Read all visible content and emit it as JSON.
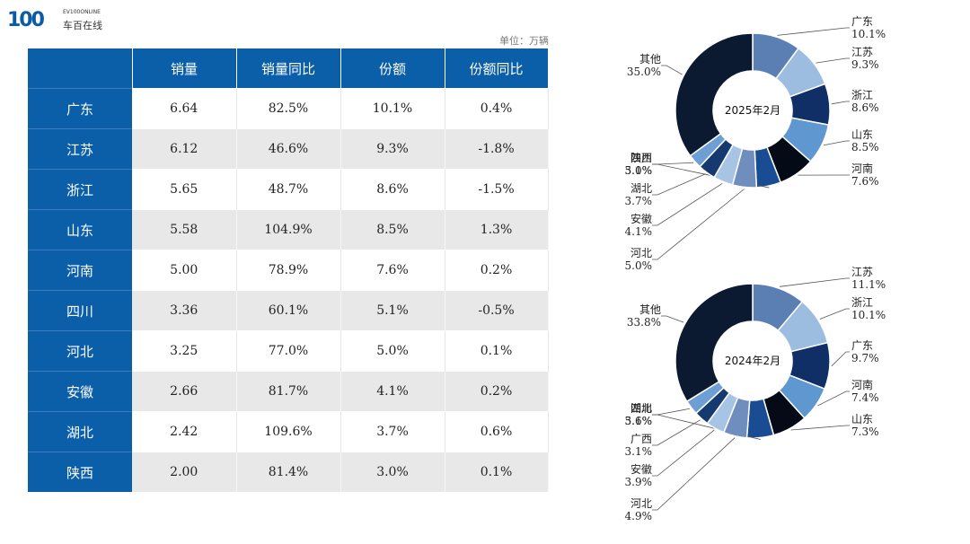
{
  "brand": {
    "logo_mark": "100",
    "logo_en": "EV100ONLINE",
    "logo_cn": "车百在线"
  },
  "unit_label": "单位：万辆",
  "table": {
    "headers": [
      "",
      "销量",
      "销量同比",
      "份额",
      "份额同比"
    ],
    "rows": [
      [
        "广东",
        "6.64",
        "82.5%",
        "10.1%",
        "0.4%"
      ],
      [
        "江苏",
        "6.12",
        "46.6%",
        "9.3%",
        "-1.8%"
      ],
      [
        "浙江",
        "5.65",
        "48.7%",
        "8.6%",
        "-1.5%"
      ],
      [
        "山东",
        "5.58",
        "104.9%",
        "8.5%",
        "1.3%"
      ],
      [
        "河南",
        "5.00",
        "78.9%",
        "7.6%",
        "0.2%"
      ],
      [
        "四川",
        "3.36",
        "60.1%",
        "5.1%",
        "-0.5%"
      ],
      [
        "河北",
        "3.25",
        "77.0%",
        "5.0%",
        "0.1%"
      ],
      [
        "安徽",
        "2.66",
        "81.7%",
        "4.1%",
        "0.2%"
      ],
      [
        "湖北",
        "2.42",
        "109.6%",
        "3.7%",
        "0.6%"
      ],
      [
        "陕西",
        "2.00",
        "81.4%",
        "3.0%",
        "0.1%"
      ]
    ]
  },
  "chart_data": [
    {
      "type": "pie",
      "donut": true,
      "center_label": "2025年2月",
      "slices": [
        {
          "label": "广东",
          "value": 10.1,
          "pct_text": "10.1%",
          "color": "#5b7fb3"
        },
        {
          "label": "江苏",
          "value": 9.3,
          "pct_text": "9.3%",
          "color": "#9cbde0"
        },
        {
          "label": "浙江",
          "value": 8.6,
          "pct_text": "8.6%",
          "color": "#0f2f66"
        },
        {
          "label": "山东",
          "value": 8.5,
          "pct_text": "8.5%",
          "color": "#5f97d1"
        },
        {
          "label": "河南",
          "value": 7.6,
          "pct_text": "7.6%",
          "color": "#050b16"
        },
        {
          "label": "四川",
          "value": 5.1,
          "pct_text": "5.1%",
          "color": "#1a4c94"
        },
        {
          "label": "河北",
          "value": 5.0,
          "pct_text": "5.0%",
          "color": "#6f8dbd"
        },
        {
          "label": "安徽",
          "value": 4.1,
          "pct_text": "4.1%",
          "color": "#a8c4e4"
        },
        {
          "label": "湖北",
          "value": 3.7,
          "pct_text": "3.7%",
          "color": "#163a70"
        },
        {
          "label": "陕西",
          "value": 3.0,
          "pct_text": "3.0%",
          "color": "#6e9fd4"
        },
        {
          "label": "其他",
          "value": 35.0,
          "pct_text": "35.0%",
          "color": "#0b1a31"
        }
      ]
    },
    {
      "type": "pie",
      "donut": true,
      "center_label": "2024年2月",
      "slices": [
        {
          "label": "江苏",
          "value": 11.1,
          "pct_text": "11.1%",
          "color": "#5b7fb3"
        },
        {
          "label": "浙江",
          "value": 10.1,
          "pct_text": "10.1%",
          "color": "#9cbde0"
        },
        {
          "label": "广东",
          "value": 9.7,
          "pct_text": "9.7%",
          "color": "#0f2f66"
        },
        {
          "label": "河南",
          "value": 7.4,
          "pct_text": "7.4%",
          "color": "#5f97d1"
        },
        {
          "label": "山东",
          "value": 7.3,
          "pct_text": "7.3%",
          "color": "#050b16"
        },
        {
          "label": "四川",
          "value": 5.6,
          "pct_text": "5.6%",
          "color": "#1a4c94"
        },
        {
          "label": "河北",
          "value": 4.9,
          "pct_text": "4.9%",
          "color": "#6f8dbd"
        },
        {
          "label": "安徽",
          "value": 3.9,
          "pct_text": "3.9%",
          "color": "#a8c4e4"
        },
        {
          "label": "广西",
          "value": 3.1,
          "pct_text": "3.1%",
          "color": "#163a70"
        },
        {
          "label": "湖北",
          "value": 3.1,
          "pct_text": "3.1%",
          "color": "#6e9fd4"
        },
        {
          "label": "其他",
          "value": 33.8,
          "pct_text": "33.8%",
          "color": "#0b1a31"
        }
      ]
    }
  ]
}
